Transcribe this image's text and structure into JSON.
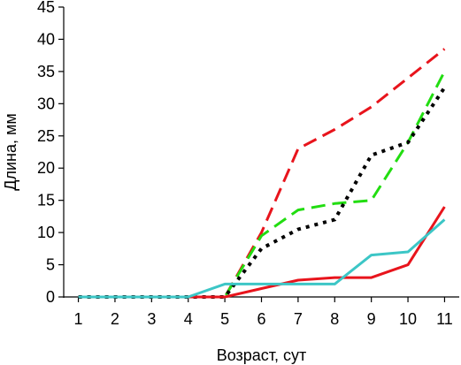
{
  "chart_data": {
    "type": "line",
    "title": "",
    "xlabel": "Возраст, сут",
    "ylabel": "Длина, мм",
    "x": [
      1,
      2,
      3,
      4,
      5,
      6,
      7,
      8,
      9,
      10,
      11
    ],
    "x_tick_labels": [
      "1",
      "2",
      "3",
      "4",
      "5",
      "6",
      "7",
      "8",
      "9",
      "10",
      "11"
    ],
    "y_ticks": [
      0,
      5,
      10,
      15,
      20,
      25,
      30,
      35,
      40,
      45
    ],
    "y_tick_labels": [
      "0",
      "5",
      "10",
      "15",
      "20",
      "25",
      "30",
      "35",
      "40",
      "45"
    ],
    "xlim": [
      0.6,
      11.4
    ],
    "ylim": [
      0,
      45
    ],
    "grid": false,
    "legend": "none",
    "series": [
      {
        "values": [
          0,
          0,
          0,
          0,
          0,
          10,
          23,
          26,
          29.5,
          34,
          38.5
        ],
        "color": "#e8141c",
        "style": "dashed"
      },
      {
        "values": [
          0,
          0,
          0,
          0,
          0,
          9.5,
          13.5,
          14.5,
          15,
          24,
          35
        ],
        "color": "#22dd11",
        "style": "dashed"
      },
      {
        "values": [
          0,
          0,
          0,
          0,
          0,
          7.5,
          10.5,
          12,
          22,
          24,
          32.5
        ],
        "color": "#000000",
        "style": "dotted"
      },
      {
        "values": [
          0,
          0,
          0,
          0,
          0,
          1.3,
          2.6,
          3,
          3,
          5,
          14
        ],
        "color": "#e8141c",
        "style": "solid"
      },
      {
        "values": [
          0,
          0,
          0,
          0,
          2,
          2,
          2,
          2,
          6.5,
          7,
          12
        ],
        "color": "#3cc6c6",
        "style": "solid"
      }
    ]
  }
}
